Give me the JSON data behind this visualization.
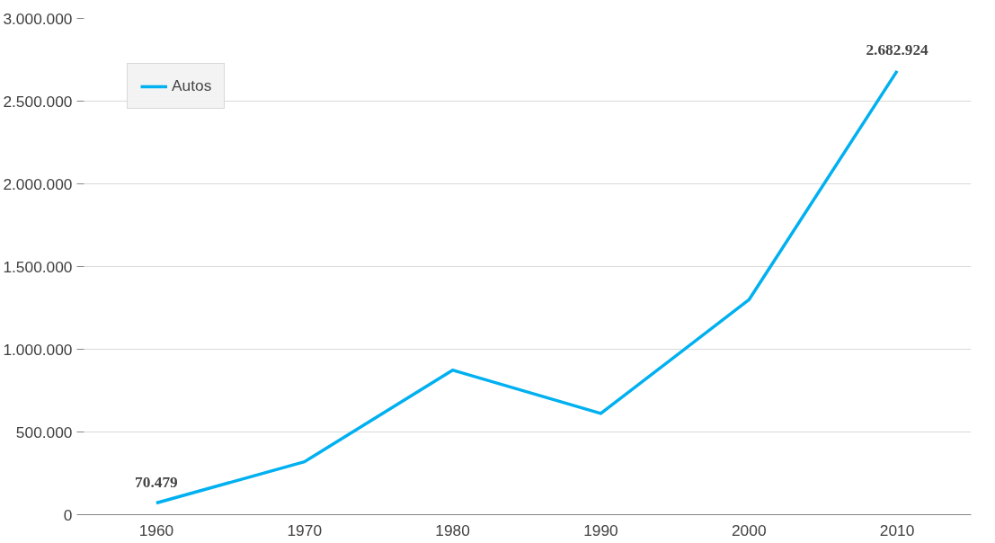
{
  "chart_data": {
    "type": "line",
    "categories": [
      "1960",
      "1970",
      "1980",
      "1990",
      "2000",
      "2010"
    ],
    "series": [
      {
        "name": "Autos",
        "color": "#00b0f0",
        "values": [
          70479,
          320000,
          874000,
          612000,
          1299000,
          2682924
        ],
        "value_labels": [
          "70.479",
          null,
          null,
          null,
          null,
          "2.682.924"
        ]
      }
    ],
    "ylim": [
      0,
      3000000
    ],
    "yticks": [
      {
        "value": 0,
        "label": "0"
      },
      {
        "value": 500000,
        "label": "500.000"
      },
      {
        "value": 1000000,
        "label": "1.000.000"
      },
      {
        "value": 1500000,
        "label": "1.500.000"
      },
      {
        "value": 2000000,
        "label": "2.000.000"
      },
      {
        "value": 2500000,
        "label": "2.500.000"
      },
      {
        "value": 3000000,
        "label": "3.000.000"
      }
    ],
    "grid": "y",
    "legend": "top left",
    "marker": "none",
    "line_style": "solid"
  }
}
